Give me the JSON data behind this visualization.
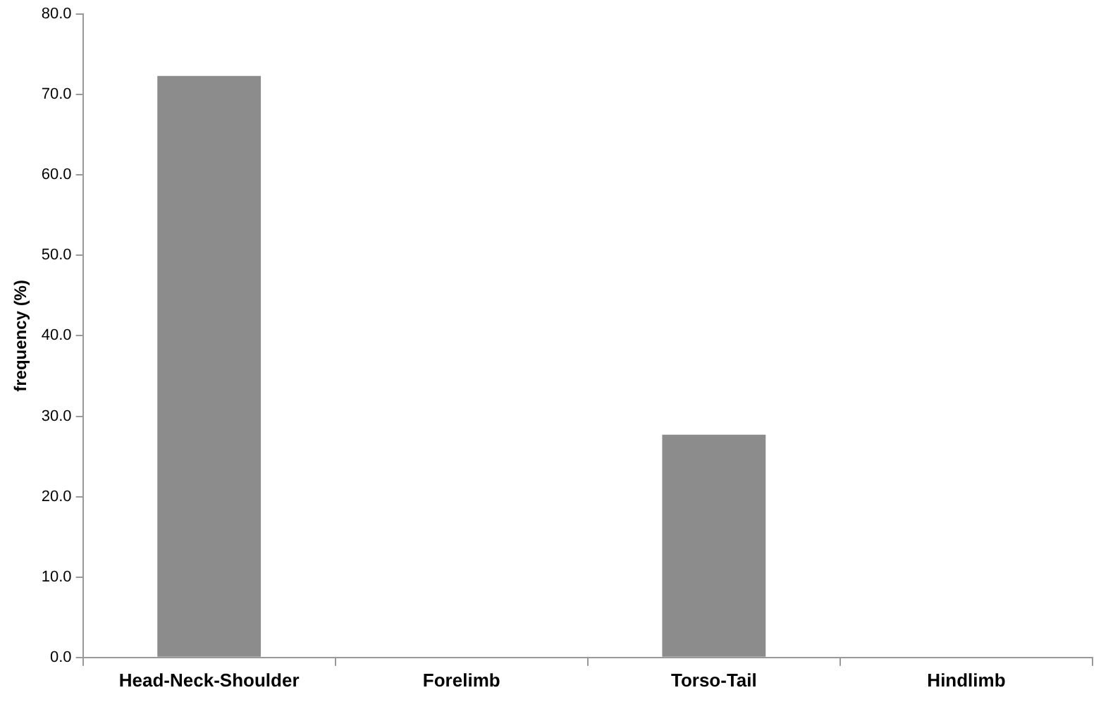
{
  "chart_data": {
    "type": "bar",
    "ylabel": "frequency (%)",
    "categories": [
      "Head-Neck-Shoulder",
      "Forelimb",
      "Torso-Tail",
      "Hindlimb"
    ],
    "values": [
      72.3,
      0,
      27.7,
      0
    ],
    "color": "#8c8c8c",
    "ylim": [
      0,
      80
    ],
    "yticks": [
      {
        "value": 0,
        "label": "0.0"
      },
      {
        "value": 10,
        "label": "10.0"
      },
      {
        "value": 20,
        "label": "20.0"
      },
      {
        "value": 30,
        "label": "30.0"
      },
      {
        "value": 40,
        "label": "40.0"
      },
      {
        "value": 50,
        "label": "50.0"
      },
      {
        "value": 60,
        "label": "60.0"
      },
      {
        "value": 70,
        "label": "70.0"
      },
      {
        "value": 80,
        "label": "80.0"
      }
    ],
    "grid": false,
    "legend": false
  }
}
